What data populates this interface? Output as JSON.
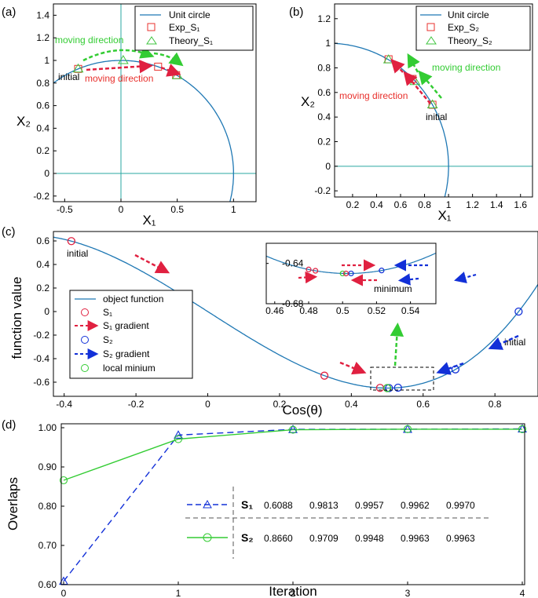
{
  "colors": {
    "curve": "#1f78b4",
    "axisline": "#2aa7a0",
    "exp": "#e8302c",
    "theory": "#3ec43e",
    "s1": "#e02040",
    "s2": "#1230d8",
    "green": "#33cc33"
  },
  "chart_data": [
    {
      "type": "line",
      "panel": "(a)",
      "xlabel": "X₁",
      "ylabel": "X₂",
      "xlim": [
        -0.6,
        1.2
      ],
      "ylim": [
        -0.25,
        1.5
      ],
      "xticks": [
        "-0.5",
        "0",
        "0.5",
        "1"
      ],
      "yticks": [
        "-0.2",
        "0",
        "0.2",
        "0.4",
        "0.6",
        "0.8",
        "1",
        "1.2",
        "1.4"
      ],
      "legend": [
        "Unit circle",
        "Exp_S₁",
        "Theory_S₁"
      ],
      "series": [
        {
          "name": "Exp_S₁",
          "points": [
            [
              -0.38,
              0.925
            ],
            [
              0.33,
              0.945
            ],
            [
              0.49,
              0.87
            ]
          ]
        },
        {
          "name": "Theory_S₁",
          "points": [
            [
              -0.38,
              0.925
            ],
            [
              0.02,
              1.0
            ],
            [
              0.5,
              0.866
            ]
          ]
        }
      ],
      "annotations": [
        "moving direction",
        "initial",
        "moving direction"
      ]
    },
    {
      "type": "line",
      "panel": "(b)",
      "xlabel": "X₁",
      "ylabel": "X₂",
      "xlim": [
        0.05,
        1.7
      ],
      "ylim": [
        -0.25,
        1.32
      ],
      "xticks": [
        "0.2",
        "0.4",
        "0.6",
        "0.8",
        "1",
        "1.2",
        "1.4",
        "1.6"
      ],
      "yticks": [
        "-0.2",
        "0",
        "0.2",
        "0.4",
        "0.6",
        "0.8",
        "1",
        "1.2"
      ],
      "legend": [
        "Unit circle",
        "Exp_S₂",
        "Theory_S₂"
      ],
      "series": [
        {
          "name": "Exp_S₂",
          "points": [
            [
              0.866,
              0.5
            ],
            [
              0.7,
              0.71
            ],
            [
              0.5,
              0.87
            ]
          ]
        },
        {
          "name": "Theory_S₂",
          "points": [
            [
              0.866,
              0.5
            ],
            [
              0.72,
              0.69
            ],
            [
              0.5,
              0.866
            ]
          ]
        }
      ],
      "annotations": [
        "moving direction",
        "moving direction",
        "initial"
      ]
    },
    {
      "type": "line",
      "panel": "(c)",
      "xlabel": "Cos(θ)",
      "ylabel": "function value",
      "xlim": [
        -0.43,
        0.92
      ],
      "ylim": [
        -0.72,
        0.68
      ],
      "xticks": [
        "-0.4",
        "-0.2",
        "0",
        "0.2",
        "0.4",
        "0.6",
        "0.8"
      ],
      "yticks": [
        "0.6",
        "0.4",
        "0.2",
        "0",
        "-0.2",
        "-0.4",
        "-0.6"
      ],
      "legend": [
        "object function",
        "S₁",
        "S₁ gradient",
        "S₂",
        "S₂ gradient",
        "local minium"
      ],
      "series": [
        {
          "name": "S₁",
          "x": [
            -0.38,
            0.325,
            0.48,
            0.5
          ]
        },
        {
          "name": "S₂",
          "x": [
            0.866,
            0.69,
            0.53,
            0.505
          ]
        },
        {
          "name": "local minium",
          "x": [
            0.5
          ]
        }
      ],
      "annotations": [
        "initial",
        "initial",
        "minimum"
      ],
      "inset": {
        "xlim": [
          0.455,
          0.555
        ],
        "ylim": [
          -0.68,
          -0.62
        ],
        "xticks": [
          "0.46",
          "0.48",
          "0.5",
          "0.52",
          "0.54"
        ],
        "yticks": [
          "-0.64",
          "-0.68"
        ]
      }
    },
    {
      "type": "line",
      "panel": "(d)",
      "xlabel": "Iteration",
      "ylabel": "Overlaps",
      "x": [
        0,
        1,
        2,
        3,
        4
      ],
      "xlim": [
        0,
        4
      ],
      "ylim": [
        0.6,
        1.0
      ],
      "xticks": [
        "0",
        "1",
        "2",
        "3",
        "4"
      ],
      "yticks": [
        "1.00",
        "0.90",
        "0.80",
        "0.70",
        "0.60"
      ],
      "series": [
        {
          "name": "S₁",
          "values": [
            0.6088,
            0.9813,
            0.9957,
            0.9962,
            0.997
          ],
          "labels": [
            "0.6088",
            "0.9813",
            "0.9957",
            "0.9962",
            "0.9970"
          ]
        },
        {
          "name": "S₂",
          "values": [
            0.866,
            0.9709,
            0.9948,
            0.9963,
            0.9963
          ],
          "labels": [
            "0.8660",
            "0.9709",
            "0.9948",
            "0.9963",
            "0.9963"
          ]
        }
      ]
    }
  ]
}
